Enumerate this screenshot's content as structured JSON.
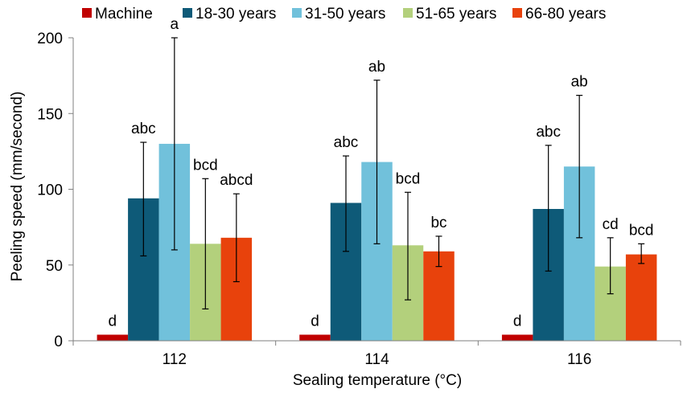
{
  "chart_data": {
    "type": "bar",
    "xlabel": "Sealing temperature (°C)",
    "ylabel": "Peeling speed (mm/second)",
    "ylim": [
      0,
      200
    ],
    "yticks": [
      0,
      50,
      100,
      150,
      200
    ],
    "grid": false,
    "legend_position": "top",
    "categories": [
      "112",
      "114",
      "116"
    ],
    "series": [
      {
        "name": "Machine",
        "color": "#c00000",
        "values": [
          4,
          4,
          4
        ],
        "err_low": [
          4,
          4,
          4
        ],
        "err_high": [
          4,
          4,
          4
        ],
        "letters": [
          "d",
          "d",
          "d"
        ]
      },
      {
        "name": "18-30 years",
        "color": "#0e5a78",
        "values": [
          94,
          91,
          87
        ],
        "err_low": [
          56,
          59,
          46
        ],
        "err_high": [
          131,
          122,
          129
        ],
        "letters": [
          "abc",
          "abc",
          "abc"
        ]
      },
      {
        "name": "31-50 years",
        "color": "#71c1db",
        "values": [
          130,
          118,
          115
        ],
        "err_low": [
          60,
          64,
          68
        ],
        "err_high": [
          200,
          172,
          162
        ],
        "letters": [
          "a",
          "ab",
          "ab"
        ]
      },
      {
        "name": "51-65 years",
        "color": "#b3d07c",
        "values": [
          64,
          63,
          49
        ],
        "err_low": [
          21,
          27,
          31
        ],
        "err_high": [
          107,
          98,
          68
        ],
        "letters": [
          "bcd",
          "bcd",
          "cd"
        ]
      },
      {
        "name": "66-80 years",
        "color": "#e8420c",
        "values": [
          68,
          59,
          57
        ],
        "err_low": [
          39,
          49,
          51
        ],
        "err_high": [
          97,
          69,
          64
        ],
        "letters": [
          "abcd",
          "bc",
          "bcd"
        ]
      }
    ]
  }
}
